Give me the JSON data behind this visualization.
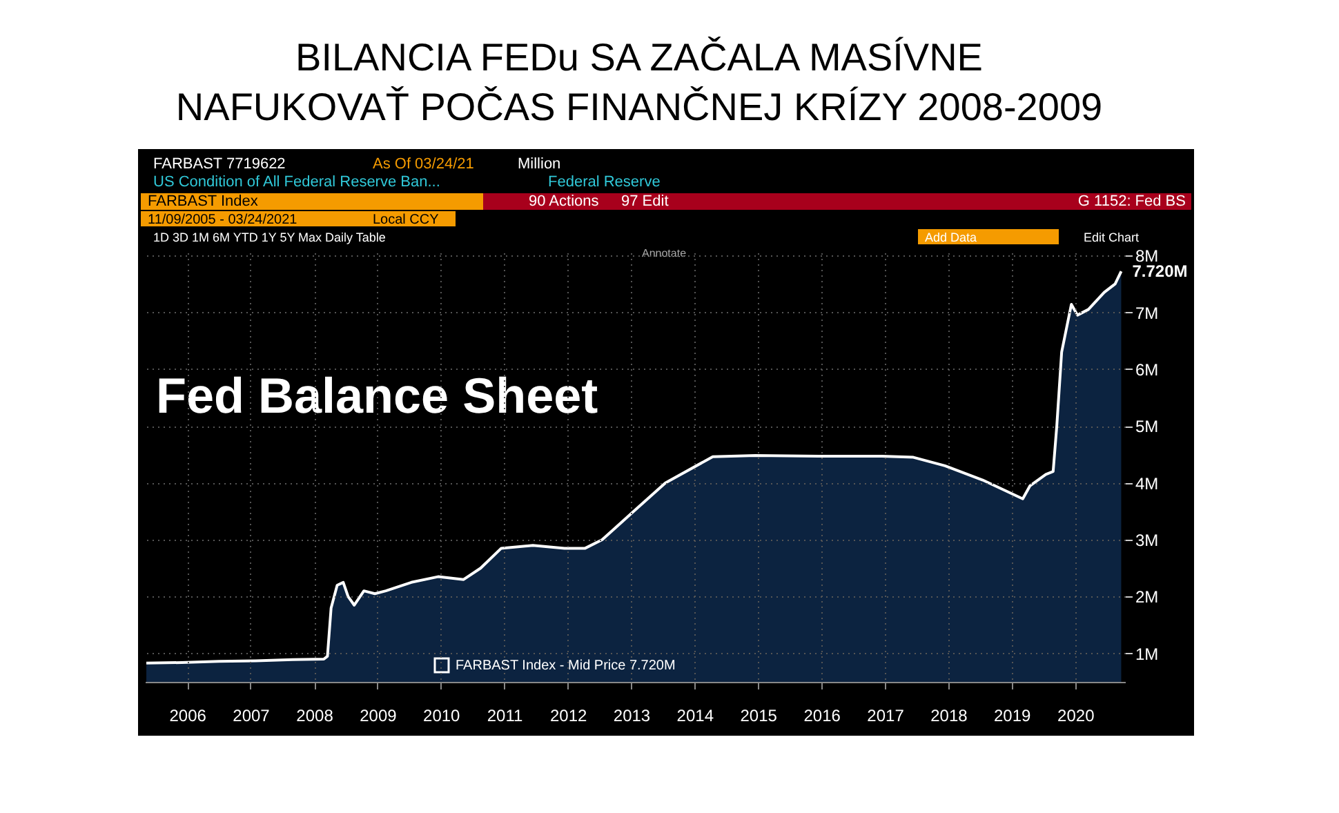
{
  "chart_data": {
    "type": "area",
    "title": "BILANCIA FEDu SA ZAČALA MASÍVNE NAFUKOVAŤ POČAS FINANČNEJ KRÍZY 2008-2009",
    "x": [
      "2005-11-09",
      "2006-06-01",
      "2007-01-01",
      "2007-08-01",
      "2008-03-01",
      "2008-08-27",
      "2008-09-17",
      "2008-10-08",
      "2008-11-12",
      "2008-12-17",
      "2009-01-14",
      "2009-02-18",
      "2009-04-15",
      "2009-06-17",
      "2009-08-19",
      "2010-01-13",
      "2010-06-16",
      "2010-11-10",
      "2011-02-16",
      "2011-06-15",
      "2011-12-14",
      "2012-06-13",
      "2012-10-10",
      "2013-01-16",
      "2013-07-17",
      "2014-01-15",
      "2014-10-15",
      "2015-06-17",
      "2016-06-15",
      "2017-06-14",
      "2017-12-13",
      "2018-06-13",
      "2019-01-16",
      "2019-09-04",
      "2019-10-16",
      "2020-01-15",
      "2020-02-26",
      "2020-03-18",
      "2020-04-15",
      "2020-06-10",
      "2020-07-15",
      "2020-09-16",
      "2020-12-16",
      "2021-02-17",
      "2021-03-24"
    ],
    "series": [
      {
        "name": "FARBAST Index - Mid Price 7.720M",
        "color": "#0c2340",
        "values": [
          0.83,
          0.84,
          0.86,
          0.87,
          0.89,
          0.9,
          0.95,
          1.8,
          2.2,
          2.25,
          2.0,
          1.85,
          2.1,
          2.05,
          2.1,
          2.25,
          2.35,
          2.3,
          2.5,
          2.85,
          2.9,
          2.85,
          2.85,
          3.0,
          3.5,
          4.0,
          4.46,
          4.48,
          4.47,
          4.47,
          4.45,
          4.3,
          4.05,
          3.72,
          3.95,
          4.15,
          4.2,
          5.0,
          6.3,
          7.14,
          6.95,
          7.05,
          7.35,
          7.5,
          7.72
        ]
      }
    ],
    "xlim": [
      "2005-11-01",
      "2021-04-15"
    ],
    "xticks": [
      {
        "value": "2006-07-02",
        "label": "2006"
      },
      {
        "value": "2007-07-02",
        "label": "2007"
      },
      {
        "value": "2008-07-02",
        "label": "2008"
      },
      {
        "value": "2009-07-02",
        "label": "2009"
      },
      {
        "value": "2010-07-02",
        "label": "2010"
      },
      {
        "value": "2011-07-02",
        "label": "2011"
      },
      {
        "value": "2012-07-02",
        "label": "2012"
      },
      {
        "value": "2013-07-02",
        "label": "2013"
      },
      {
        "value": "2014-07-02",
        "label": "2014"
      },
      {
        "value": "2015-07-02",
        "label": "2015"
      },
      {
        "value": "2016-07-02",
        "label": "2016"
      },
      {
        "value": "2017-07-02",
        "label": "2017"
      },
      {
        "value": "2018-07-02",
        "label": "2018"
      },
      {
        "value": "2019-07-02",
        "label": "2019"
      },
      {
        "value": "2020-07-02",
        "label": "2020"
      }
    ],
    "ylim": [
      0.5,
      8.05
    ],
    "yticks": [
      {
        "value": 1,
        "label": "1M"
      },
      {
        "value": 2,
        "label": "2M"
      },
      {
        "value": 3,
        "label": "3M"
      },
      {
        "value": 4,
        "label": "4M"
      },
      {
        "value": 5,
        "label": "5M"
      },
      {
        "value": 6,
        "label": "6M"
      },
      {
        "value": 7,
        "label": "7M"
      },
      {
        "value": 8,
        "label": "8M"
      }
    ],
    "grid": true,
    "legend": "bottom",
    "annotations": [
      "Fed Balance Sheet",
      "FARBAST    7719622",
      "As Of 03/24/21",
      "Million",
      "US Condition of All Federal Reserve Ban...",
      "Federal Reserve",
      "FARBAST Index",
      "90 Actions",
      "97 Edit",
      "G 1152: Fed BS",
      "11/09/2005 - 03/24/2021",
      "Local CCY",
      "1D  3D  1M  6M  YTD  1Y  5Y  Max  Daily  Table",
      "Add Data",
      "Edit Chart",
      "Annotate",
      {
        "text": "7.720M",
        "x": "2021-03-24",
        "y": 7.72
      }
    ]
  }
}
